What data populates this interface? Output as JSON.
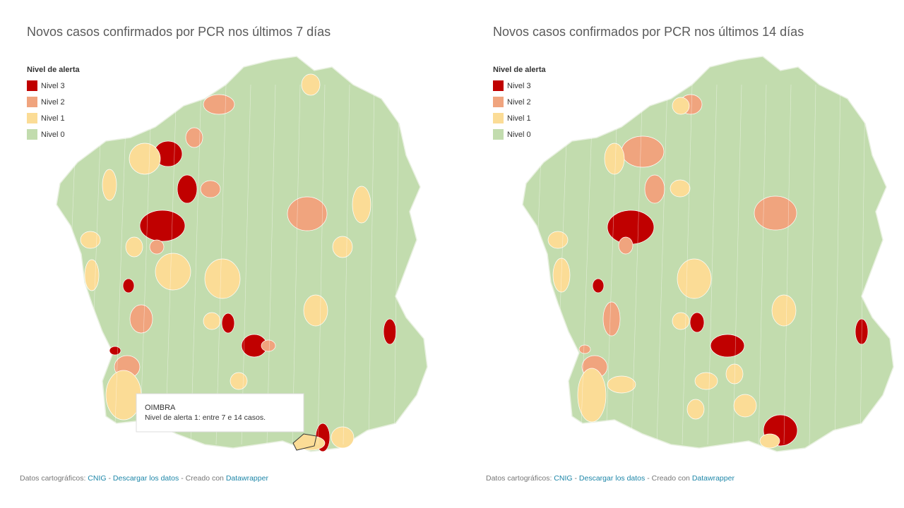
{
  "maps": [
    {
      "title": "Novos casos confirmados por PCR nos últimos 7 días",
      "legend": {
        "title": "Nivel de alerta",
        "items": [
          {
            "label": "Nivel 3",
            "color": "#c00000"
          },
          {
            "label": "Nivel 2",
            "color": "#f0a47e"
          },
          {
            "label": "Nivel 1",
            "color": "#fbdc96"
          },
          {
            "label": "Nivel 0",
            "color": "#c2dcae"
          }
        ]
      },
      "tooltip": {
        "name": "OIMBRA",
        "text": "Nivel de alerta 1: entre 7 e 14 casos."
      },
      "footer": {
        "prefix": "Datos cartográficos:",
        "source": "CNIG",
        "sep": "-",
        "download": "Descargar los datos",
        "created": "- Creado con",
        "tool": "Datawrapper"
      }
    },
    {
      "title": "Novos casos confirmados por PCR nos últimos 14 días",
      "legend": {
        "title": "Nivel de alerta",
        "items": [
          {
            "label": "Nivel 3",
            "color": "#c00000"
          },
          {
            "label": "Nivel 2",
            "color": "#f0a47e"
          },
          {
            "label": "Nivel 1",
            "color": "#fbdc96"
          },
          {
            "label": "Nivel 0",
            "color": "#c2dcae"
          }
        ]
      },
      "footer": {
        "prefix": "Datos cartográficos:",
        "source": "CNIG",
        "sep": "-",
        "download": "Descargar los datos",
        "created": "- Creado con",
        "tool": "Datawrapper"
      }
    }
  ]
}
